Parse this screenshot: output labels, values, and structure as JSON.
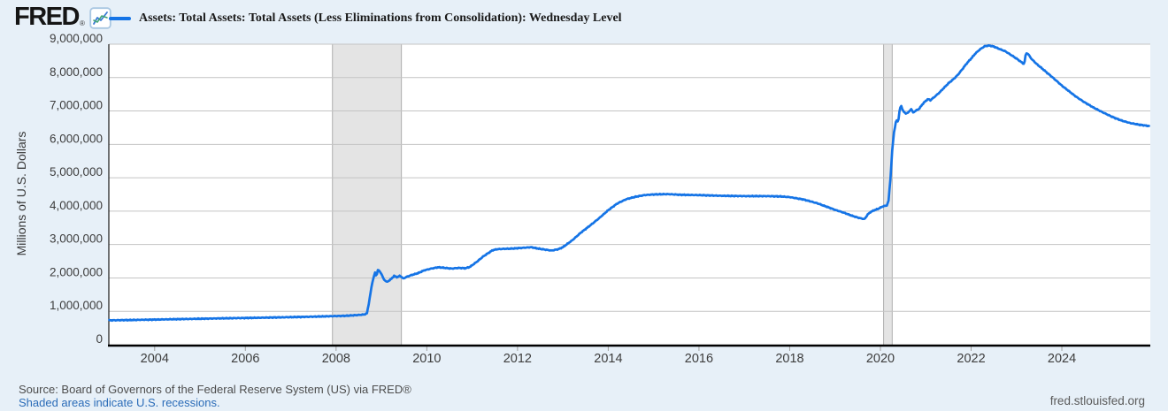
{
  "header": {
    "logo_text": "FRED",
    "registered_mark": "®"
  },
  "footer": {
    "source_line": "Source: Board of Governors of the Federal Reserve System (US) via FRED®",
    "shaded_note": "Shaded areas indicate U.S. recessions.",
    "site_link": "fred.stlouisfed.org"
  },
  "colors": {
    "background": "#e7f0f8",
    "plot_background": "#ffffff",
    "gridline": "#c4c4c4",
    "recession_band": "#e4e4e4",
    "recession_band_edge": "#aeaeae",
    "line": "#1574e6",
    "x_axis": "#000000",
    "y_axis": "#1a1a1a",
    "tick": "#a0a0a0",
    "tick_label": "#3d3d3d",
    "link_blue": "#2b6cb8"
  },
  "chart_data": {
    "type": "line",
    "title": "Assets: Total Assets: Total Assets (Less Eliminations from Consolidation): Wednesday Level",
    "ylabel": "Millions of U.S. Dollars",
    "xlabel": "",
    "xlim": [
      2002.99,
      2025.95
    ],
    "ylim": [
      0,
      9000000
    ],
    "grid": "horizontal",
    "legend_position": "top-left",
    "x_ticks": [
      2004,
      2006,
      2008,
      2010,
      2012,
      2014,
      2016,
      2018,
      2020,
      2022,
      2024
    ],
    "x_tick_labels": [
      "2004",
      "2006",
      "2008",
      "2010",
      "2012",
      "2014",
      "2016",
      "2018",
      "2020",
      "2022",
      "2024"
    ],
    "y_ticks": [
      0,
      1000000,
      2000000,
      3000000,
      4000000,
      5000000,
      6000000,
      7000000,
      8000000,
      9000000
    ],
    "y_tick_labels": [
      "0",
      "1,000,000",
      "2,000,000",
      "3,000,000",
      "4,000,000",
      "5,000,000",
      "6,000,000",
      "7,000,000",
      "8,000,000",
      "9,000,000"
    ],
    "recession_bands": [
      [
        2007.92,
        2009.44
      ],
      [
        2020.07,
        2020.26
      ]
    ],
    "noise_amplitude": 14000,
    "series": [
      {
        "name": "Assets: Total Assets: Total Assets (Less Eliminations from Consolidation): Wednesday Level",
        "units": "Millions of U.S. Dollars",
        "points": [
          [
            2003.0,
            730000
          ],
          [
            2003.25,
            735000
          ],
          [
            2003.5,
            740000
          ],
          [
            2004.0,
            752000
          ],
          [
            2004.5,
            765000
          ],
          [
            2005.0,
            778000
          ],
          [
            2005.5,
            790000
          ],
          [
            2006.0,
            800000
          ],
          [
            2006.5,
            812000
          ],
          [
            2007.0,
            825000
          ],
          [
            2007.5,
            840000
          ],
          [
            2007.9,
            855000
          ],
          [
            2008.2,
            865000
          ],
          [
            2008.5,
            890000
          ],
          [
            2008.62,
            905000
          ],
          [
            2008.68,
            940000
          ],
          [
            2008.72,
            1220000
          ],
          [
            2008.76,
            1560000
          ],
          [
            2008.8,
            1870000
          ],
          [
            2008.84,
            2080000
          ],
          [
            2008.86,
            2150000
          ],
          [
            2008.89,
            2050000
          ],
          [
            2008.92,
            2240000
          ],
          [
            2008.96,
            2200000
          ],
          [
            2009.0,
            2120000
          ],
          [
            2009.05,
            1960000
          ],
          [
            2009.12,
            1880000
          ],
          [
            2009.2,
            1950000
          ],
          [
            2009.28,
            2060000
          ],
          [
            2009.35,
            2020000
          ],
          [
            2009.41,
            2070000
          ],
          [
            2009.48,
            1980000
          ],
          [
            2009.55,
            2030000
          ],
          [
            2009.65,
            2080000
          ],
          [
            2009.8,
            2140000
          ],
          [
            2009.95,
            2230000
          ],
          [
            2010.1,
            2280000
          ],
          [
            2010.25,
            2320000
          ],
          [
            2010.4,
            2300000
          ],
          [
            2010.55,
            2280000
          ],
          [
            2010.7,
            2300000
          ],
          [
            2010.85,
            2290000
          ],
          [
            2010.95,
            2330000
          ],
          [
            2011.1,
            2480000
          ],
          [
            2011.25,
            2650000
          ],
          [
            2011.45,
            2830000
          ],
          [
            2011.55,
            2860000
          ],
          [
            2011.7,
            2870000
          ],
          [
            2011.9,
            2880000
          ],
          [
            2012.1,
            2900000
          ],
          [
            2012.3,
            2920000
          ],
          [
            2012.45,
            2880000
          ],
          [
            2012.6,
            2850000
          ],
          [
            2012.75,
            2820000
          ],
          [
            2012.9,
            2860000
          ],
          [
            2013.0,
            2920000
          ],
          [
            2013.2,
            3120000
          ],
          [
            2013.4,
            3360000
          ],
          [
            2013.6,
            3570000
          ],
          [
            2013.8,
            3790000
          ],
          [
            2014.0,
            4030000
          ],
          [
            2014.2,
            4230000
          ],
          [
            2014.4,
            4360000
          ],
          [
            2014.6,
            4430000
          ],
          [
            2014.8,
            4480000
          ],
          [
            2015.0,
            4500000
          ],
          [
            2015.3,
            4510000
          ],
          [
            2015.6,
            4490000
          ],
          [
            2016.0,
            4480000
          ],
          [
            2016.5,
            4460000
          ],
          [
            2017.0,
            4450000
          ],
          [
            2017.5,
            4450000
          ],
          [
            2017.8,
            4440000
          ],
          [
            2018.0,
            4420000
          ],
          [
            2018.3,
            4350000
          ],
          [
            2018.6,
            4240000
          ],
          [
            2019.0,
            4040000
          ],
          [
            2019.2,
            3950000
          ],
          [
            2019.4,
            3850000
          ],
          [
            2019.55,
            3790000
          ],
          [
            2019.65,
            3760000
          ],
          [
            2019.72,
            3900000
          ],
          [
            2019.78,
            3970000
          ],
          [
            2019.85,
            4020000
          ],
          [
            2019.95,
            4070000
          ],
          [
            2020.05,
            4140000
          ],
          [
            2020.14,
            4170000
          ],
          [
            2020.18,
            4310000
          ],
          [
            2020.22,
            4970000
          ],
          [
            2020.26,
            5800000
          ],
          [
            2020.3,
            6370000
          ],
          [
            2020.34,
            6660000
          ],
          [
            2020.36,
            6720000
          ],
          [
            2020.39,
            6660000
          ],
          [
            2020.42,
            6980000
          ],
          [
            2020.45,
            7170000
          ],
          [
            2020.5,
            7010000
          ],
          [
            2020.55,
            6920000
          ],
          [
            2020.62,
            6960000
          ],
          [
            2020.68,
            7060000
          ],
          [
            2020.72,
            6950000
          ],
          [
            2020.78,
            7010000
          ],
          [
            2020.85,
            7060000
          ],
          [
            2020.95,
            7240000
          ],
          [
            2021.05,
            7360000
          ],
          [
            2021.1,
            7320000
          ],
          [
            2021.2,
            7430000
          ],
          [
            2021.3,
            7550000
          ],
          [
            2021.4,
            7690000
          ],
          [
            2021.5,
            7830000
          ],
          [
            2021.6,
            7940000
          ],
          [
            2021.7,
            8070000
          ],
          [
            2021.8,
            8240000
          ],
          [
            2021.9,
            8420000
          ],
          [
            2022.0,
            8570000
          ],
          [
            2022.1,
            8730000
          ],
          [
            2022.2,
            8850000
          ],
          [
            2022.3,
            8940000
          ],
          [
            2022.4,
            8960000
          ],
          [
            2022.5,
            8930000
          ],
          [
            2022.6,
            8870000
          ],
          [
            2022.75,
            8790000
          ],
          [
            2022.9,
            8660000
          ],
          [
            2023.0,
            8570000
          ],
          [
            2023.1,
            8470000
          ],
          [
            2023.17,
            8400000
          ],
          [
            2023.21,
            8740000
          ],
          [
            2023.26,
            8700000
          ],
          [
            2023.33,
            8560000
          ],
          [
            2023.45,
            8400000
          ],
          [
            2023.6,
            8230000
          ],
          [
            2023.8,
            8000000
          ],
          [
            2024.0,
            7760000
          ],
          [
            2024.15,
            7600000
          ],
          [
            2024.3,
            7440000
          ],
          [
            2024.5,
            7260000
          ],
          [
            2024.7,
            7100000
          ],
          [
            2024.9,
            6960000
          ],
          [
            2025.1,
            6830000
          ],
          [
            2025.3,
            6720000
          ],
          [
            2025.5,
            6640000
          ],
          [
            2025.7,
            6590000
          ],
          [
            2025.92,
            6550000
          ]
        ]
      }
    ]
  }
}
